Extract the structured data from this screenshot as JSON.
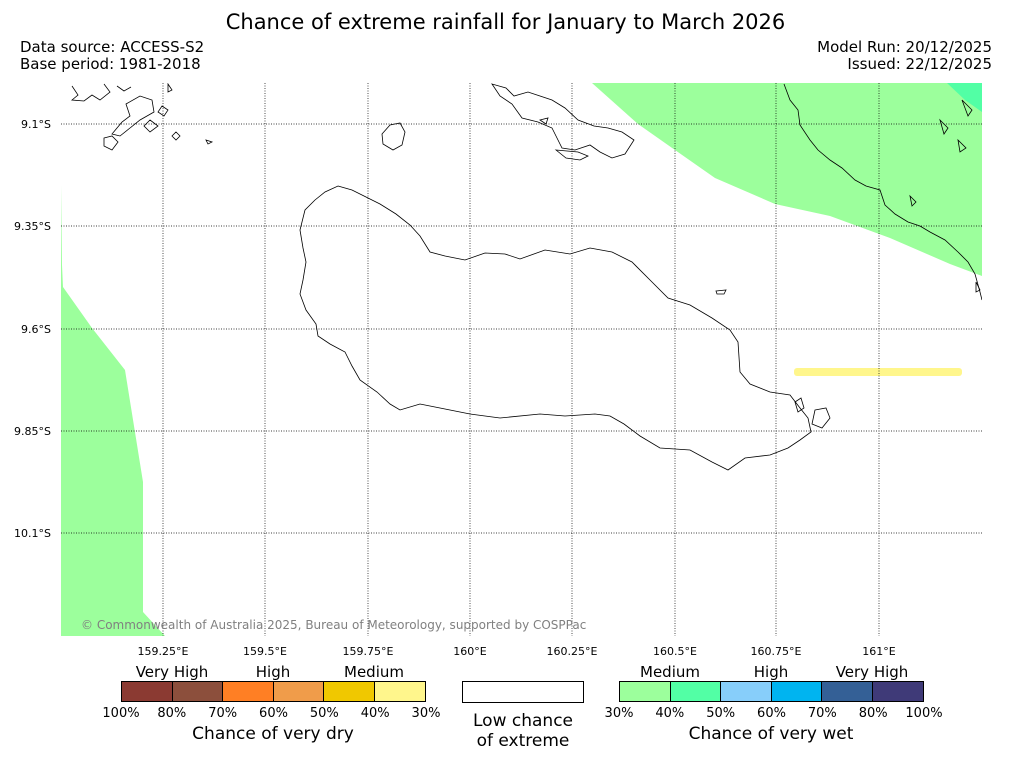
{
  "title": "Chance of extreme rainfall for January to March 2026",
  "data_source": "Data source: ACCESS-S2",
  "base_period": "Base period: 1981-2018",
  "model_run": "Model Run: 20/12/2025",
  "issued": "Issued: 22/12/2025",
  "copyright": "© Commonwealth of Australia 2025, Bureau of Meteorology, supported by COSPPac",
  "map": {
    "lon_range": [
      159.0,
      161.25
    ],
    "lat_range": [
      -10.35,
      -9.0
    ],
    "lat_ticks": [
      "9.1°S",
      "9.35°S",
      "9.6°S",
      "9.85°S",
      "10.1°S"
    ],
    "lon_ticks": [
      "159.25°E",
      "159.5°E",
      "159.75°E",
      "160°E",
      "160.25°E",
      "160.5°E",
      "160.75°E",
      "161°E"
    ],
    "grid": true,
    "region_colors": {
      "wet_30_40": "#9cff9c",
      "wet_40_50": "#52ffa5",
      "dry_30_40": "#fff68c"
    }
  },
  "legend": {
    "dry": {
      "categories": [
        "Very High",
        "High",
        "Medium"
      ],
      "colors": [
        "#8b3a32",
        "#8c4f3c",
        "#ff7f24",
        "#f09c4a",
        "#f0c800",
        "#fff68c"
      ],
      "ticks": [
        "100%",
        "80%",
        "70%",
        "60%",
        "50%",
        "40%",
        "30%"
      ],
      "caption": "Chance of very dry"
    },
    "low": {
      "caption_line1": "Low chance",
      "caption_line2": "of extreme"
    },
    "wet": {
      "categories": [
        "Medium",
        "High",
        "Very High"
      ],
      "colors": [
        "#9cff9c",
        "#52ffa5",
        "#87cefa",
        "#00b4f0",
        "#346096",
        "#3f3a78"
      ],
      "ticks": [
        "30%",
        "40%",
        "50%",
        "60%",
        "70%",
        "80%",
        "100%"
      ],
      "caption": "Chance of very wet"
    }
  }
}
